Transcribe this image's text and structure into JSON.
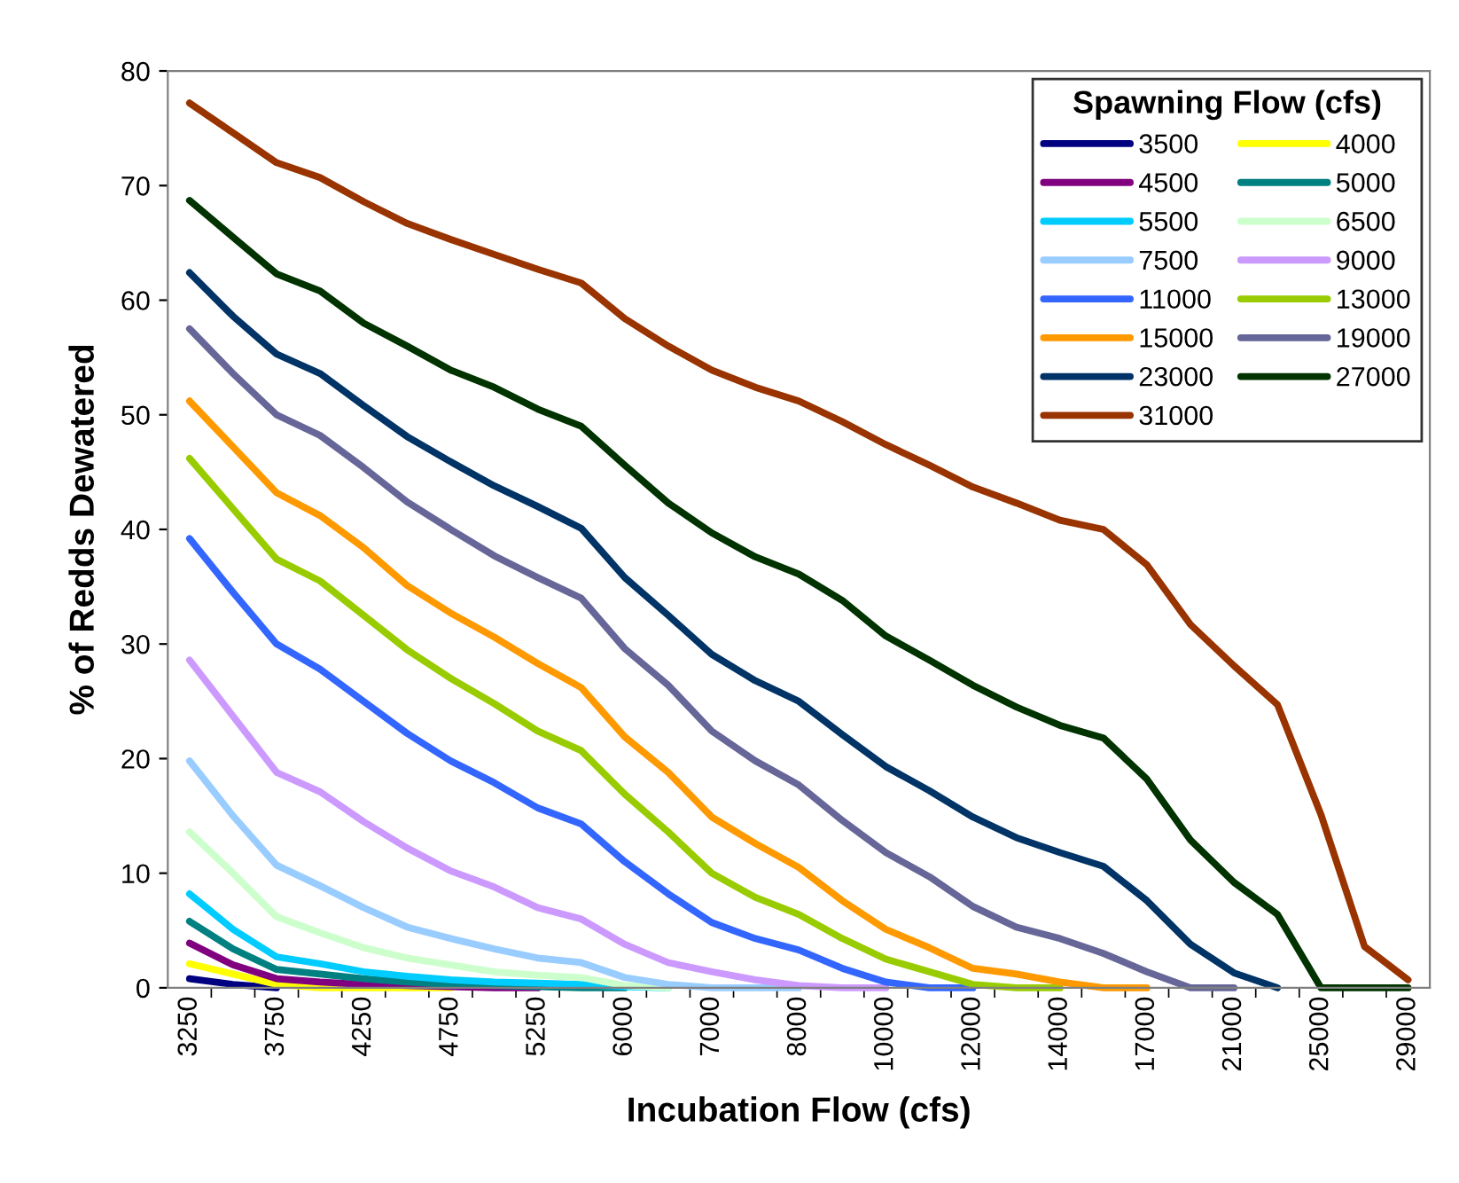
{
  "chart_data": {
    "type": "line",
    "xlabel": "Incubation Flow (cfs)",
    "ylabel": "% of Redds Dewatered",
    "legend_title": "Spawning Flow (cfs)",
    "legend": "top right",
    "grid": false,
    "marker": "none",
    "line_style": "solid",
    "categories": [
      "3250",
      null,
      "3750",
      null,
      "4250",
      null,
      "4750",
      null,
      "5250",
      null,
      "6000",
      null,
      "7000",
      null,
      "8000",
      null,
      "10000",
      null,
      "12000",
      null,
      "14000",
      null,
      "17000",
      null,
      "21000",
      null,
      "25000",
      null,
      "29000"
    ],
    "ylim": [
      0,
      80
    ],
    "yticks": [
      0,
      10,
      20,
      30,
      40,
      50,
      60,
      70,
      80
    ],
    "series": [
      {
        "name": "3500",
        "color": "#000080",
        "values": [
          0.8,
          0.3,
          0,
          null,
          null,
          null,
          null,
          null,
          null,
          null,
          null,
          null,
          null,
          null,
          null,
          null,
          null,
          null,
          null,
          null,
          null,
          null,
          null,
          null,
          null,
          null,
          null,
          null,
          null
        ]
      },
      {
        "name": "4000",
        "color": "#ffff00",
        "values": [
          2.1,
          1.2,
          0.3,
          0,
          0,
          0,
          0,
          null,
          null,
          null,
          null,
          null,
          null,
          null,
          null,
          null,
          null,
          null,
          null,
          null,
          null,
          null,
          null,
          null,
          null,
          null,
          null,
          null,
          null
        ]
      },
      {
        "name": "4500",
        "color": "#800080",
        "values": [
          3.9,
          2.0,
          0.8,
          0.5,
          0.3,
          0.2,
          0.1,
          0,
          0,
          null,
          null,
          null,
          null,
          null,
          null,
          null,
          null,
          null,
          null,
          null,
          null,
          null,
          null,
          null,
          null,
          null,
          null,
          null,
          null
        ]
      },
      {
        "name": "5000",
        "color": "#008080",
        "values": [
          5.8,
          3.4,
          1.6,
          1.2,
          0.8,
          0.5,
          0.3,
          0.2,
          0.1,
          0,
          0,
          null,
          null,
          null,
          null,
          null,
          null,
          null,
          null,
          null,
          null,
          null,
          null,
          null,
          null,
          null,
          null,
          null,
          null
        ]
      },
      {
        "name": "5500",
        "color": "#00ccff",
        "values": [
          8.2,
          5.1,
          2.7,
          2.1,
          1.4,
          1.0,
          0.7,
          0.5,
          0.4,
          0.3,
          0.1,
          0,
          null,
          null,
          null,
          null,
          null,
          null,
          null,
          null,
          null,
          null,
          null,
          null,
          null,
          null,
          null,
          null,
          null
        ]
      },
      {
        "name": "6500",
        "color": "#ccffcc",
        "values": [
          13.6,
          10.0,
          6.2,
          4.8,
          3.5,
          2.6,
          2.0,
          1.4,
          1.1,
          0.9,
          0.2,
          0,
          null,
          null,
          null,
          null,
          null,
          null,
          null,
          null,
          null,
          null,
          null,
          null,
          null,
          null,
          null,
          null,
          null
        ]
      },
      {
        "name": "7500",
        "color": "#99ccff",
        "values": [
          19.8,
          15.0,
          10.7,
          8.9,
          7.0,
          5.3,
          4.3,
          3.4,
          2.6,
          2.2,
          0.9,
          0.3,
          0,
          0,
          0,
          null,
          null,
          null,
          null,
          null,
          null,
          null,
          null,
          null,
          null,
          null,
          null,
          null,
          null
        ]
      },
      {
        "name": "9000",
        "color": "#cc99ff",
        "values": [
          28.6,
          23.7,
          18.8,
          17.1,
          14.5,
          12.2,
          10.2,
          8.8,
          7.0,
          6.0,
          3.8,
          2.2,
          1.4,
          0.7,
          0.2,
          0,
          0,
          null,
          null,
          null,
          null,
          null,
          null,
          null,
          null,
          null,
          null,
          null,
          null
        ]
      },
      {
        "name": "11000",
        "color": "#3366ff",
        "values": [
          39.2,
          34.5,
          30.0,
          27.8,
          25.0,
          22.2,
          19.8,
          17.9,
          15.7,
          14.3,
          11.0,
          8.2,
          5.7,
          4.3,
          3.3,
          1.7,
          0.5,
          0,
          0,
          null,
          null,
          null,
          null,
          null,
          null,
          null,
          null,
          null,
          null
        ]
      },
      {
        "name": "13000",
        "color": "#99cc00",
        "values": [
          46.2,
          41.8,
          37.4,
          35.5,
          32.5,
          29.5,
          27.0,
          24.8,
          22.4,
          20.7,
          16.9,
          13.6,
          10.0,
          7.9,
          6.4,
          4.3,
          2.5,
          1.4,
          0.3,
          0,
          0,
          null,
          null,
          null,
          null,
          null,
          null,
          null,
          null
        ]
      },
      {
        "name": "15000",
        "color": "#ff9900",
        "values": [
          51.2,
          47.2,
          43.2,
          41.2,
          38.4,
          35.1,
          32.7,
          30.6,
          28.3,
          26.2,
          21.9,
          18.8,
          14.9,
          12.6,
          10.5,
          7.6,
          5.1,
          3.5,
          1.7,
          1.2,
          0.5,
          0,
          0,
          null,
          null,
          null,
          null,
          null,
          null
        ]
      },
      {
        "name": "19000",
        "color": "#666699",
        "values": [
          57.5,
          53.6,
          50.0,
          48.2,
          45.4,
          42.4,
          40.0,
          37.7,
          35.8,
          34.0,
          29.6,
          26.4,
          22.4,
          19.8,
          17.7,
          14.6,
          11.8,
          9.7,
          7.1,
          5.3,
          4.3,
          3.0,
          1.4,
          0,
          0,
          null,
          null,
          null,
          null
        ]
      },
      {
        "name": "23000",
        "color": "#003366",
        "values": [
          62.4,
          58.6,
          55.3,
          53.6,
          50.8,
          48.1,
          45.9,
          43.8,
          42.0,
          40.1,
          35.8,
          32.5,
          29.1,
          26.8,
          25.0,
          22.1,
          19.3,
          17.2,
          14.9,
          13.1,
          11.8,
          10.6,
          7.6,
          3.8,
          1.3,
          0,
          null,
          null,
          null
        ]
      },
      {
        "name": "27000",
        "color": "#003300",
        "values": [
          68.7,
          65.5,
          62.3,
          60.8,
          58.0,
          56.0,
          53.9,
          52.4,
          50.5,
          49.0,
          45.6,
          42.3,
          39.7,
          37.6,
          36.1,
          33.8,
          30.7,
          28.6,
          26.4,
          24.5,
          22.9,
          21.8,
          18.2,
          12.9,
          9.2,
          6.4,
          0,
          0,
          0
        ]
      },
      {
        "name": "31000",
        "color": "#993300",
        "values": [
          77.2,
          74.6,
          72.0,
          70.7,
          68.6,
          66.7,
          65.3,
          64.0,
          62.7,
          61.5,
          58.4,
          56.0,
          53.9,
          52.4,
          51.2,
          49.4,
          47.4,
          45.6,
          43.7,
          42.3,
          40.8,
          40.0,
          36.9,
          31.7,
          28.1,
          24.7,
          15.1,
          3.6,
          0.7
        ]
      }
    ]
  }
}
